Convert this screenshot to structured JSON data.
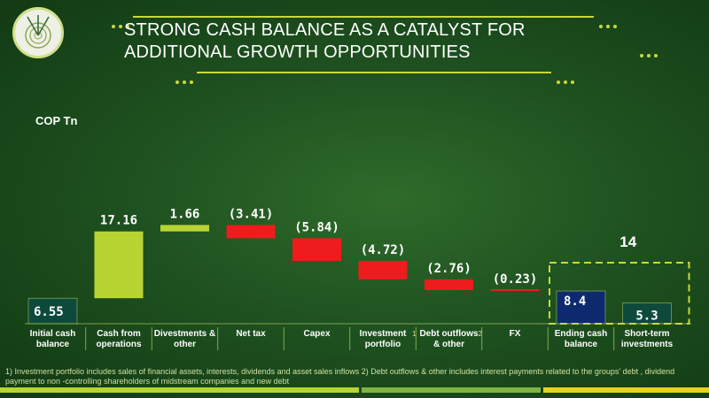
{
  "header": {
    "title_line1": "STRONG CASH BALANCE AS A CATALYST FOR",
    "title_line2": "ADDITIONAL GROWTH OPPORTUNITIES"
  },
  "colors": {
    "positive": "#b8d433",
    "negative": "#ee1c1c",
    "ending": "#0e2a6e",
    "teal": "#0e4a3c",
    "accent": "#c8d93a"
  },
  "chart_data": {
    "type": "bar",
    "subtype": "waterfall",
    "unit_label": "COP Tn",
    "categories": [
      {
        "lines": [
          "Initial cash",
          "balance"
        ]
      },
      {
        "lines": [
          "Cash from",
          "operations"
        ]
      },
      {
        "lines": [
          "Divestments &",
          "other"
        ]
      },
      {
        "lines": [
          "Net tax"
        ]
      },
      {
        "lines": [
          "Capex"
        ]
      },
      {
        "lines": [
          "Investment",
          "portfolio"
        ],
        "sup": "1"
      },
      {
        "lines": [
          "Debt outflows",
          "& other"
        ],
        "sup": "2"
      },
      {
        "lines": [
          "FX"
        ]
      },
      {
        "lines": [
          "Ending cash",
          "balance"
        ]
      },
      {
        "lines": [
          "Short-term",
          "investments"
        ]
      }
    ],
    "values": [
      6.55,
      17.16,
      1.66,
      -3.41,
      -5.84,
      -4.72,
      -2.76,
      -0.23,
      8.4,
      5.3
    ],
    "labels": [
      "6.55",
      "17.16",
      "1.66",
      "(3.41)",
      "(5.84)",
      "(4.72)",
      "(2.76)",
      "(0.23)",
      "8.4",
      "5.3"
    ],
    "bar_kinds": [
      "base",
      "positive",
      "positive",
      "negative",
      "negative",
      "negative",
      "negative",
      "negative",
      "ending",
      "teal"
    ],
    "group_total": {
      "label": "14",
      "covers": [
        "Ending cash balance",
        "Short-term investments"
      ]
    }
  },
  "footnote": "1) Investment portfolio includes sales of financial assets, interests, dividends and asset sales inflows  2) Debt outflows & other includes interest payments related to the groups' debt , dividend payment to non -controlling shareholders  of midstream companies and  new debt"
}
